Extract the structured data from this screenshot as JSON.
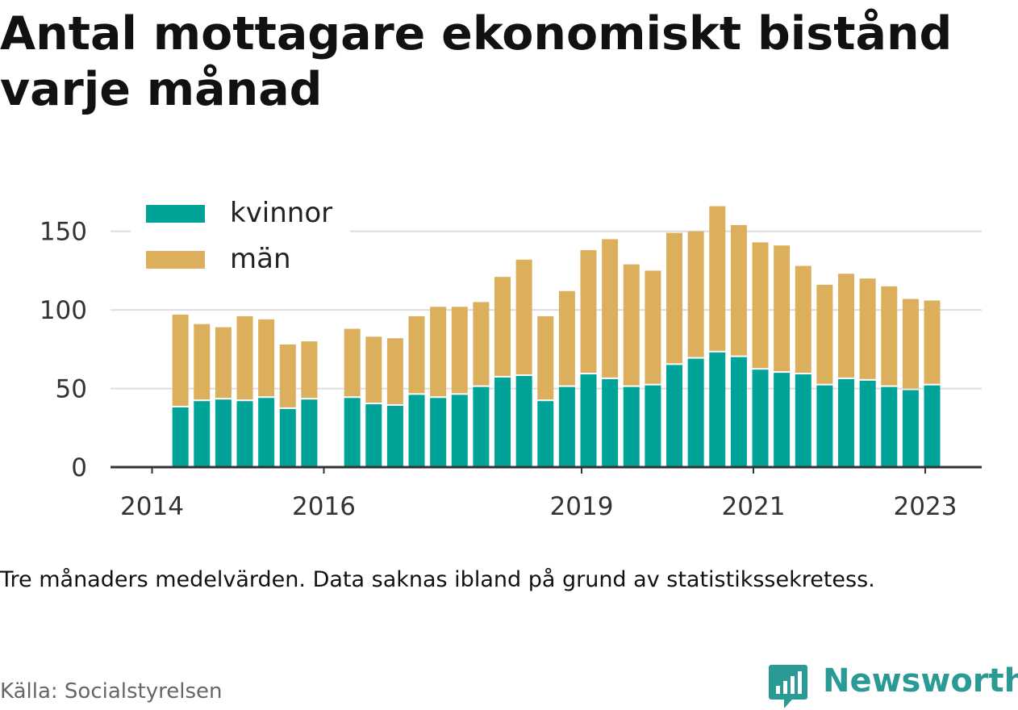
{
  "title": "Antal mottagare ekonomiskt bistånd varje månad",
  "note": "Tre månaders medelvärden. Data saknas ibland på grund av statistikssekretess.",
  "source": "Källa: Socialstyrelsen",
  "brand": {
    "name": "Newsworthy",
    "icon": "bar-chart-speech-bubble-icon",
    "color": "#2a9a94"
  },
  "colors": {
    "kvinnor": "#00a398",
    "man": "#dcaf5c",
    "grid": "#dddddd",
    "axis": "#333333"
  },
  "chart_data": {
    "type": "bar",
    "stacked": true,
    "x_tick_labels": [
      "2014",
      "2016",
      "2019",
      "2021",
      "2023"
    ],
    "x_tick_years": [
      2014,
      2016,
      2019,
      2021,
      2023
    ],
    "y_ticks": [
      0,
      50,
      100,
      150
    ],
    "ylim": [
      0,
      175
    ],
    "grid": true,
    "legend_position": "top-left",
    "x": [
      2014.33,
      2014.58,
      2014.83,
      2015.08,
      2015.33,
      2015.58,
      2015.83,
      2016.33,
      2016.58,
      2016.83,
      2017.08,
      2017.33,
      2017.58,
      2017.83,
      2018.08,
      2018.33,
      2018.58,
      2018.83,
      2019.08,
      2019.33,
      2019.58,
      2019.83,
      2020.08,
      2020.33,
      2020.58,
      2020.83,
      2021.08,
      2021.33,
      2021.58,
      2021.83,
      2022.08,
      2022.33,
      2022.58,
      2022.83,
      2023.08
    ],
    "series": [
      {
        "name": "kvinnor",
        "values": [
          38,
          42,
          43,
          42,
          44,
          37,
          43,
          44,
          40,
          39,
          46,
          44,
          46,
          51,
          57,
          58,
          42,
          51,
          59,
          56,
          51,
          52,
          65,
          69,
          73,
          70,
          62,
          60,
          59,
          52,
          56,
          55,
          51,
          49,
          52
        ]
      },
      {
        "name": "män",
        "values": [
          59,
          49,
          46,
          54,
          50,
          41,
          37,
          44,
          43,
          43,
          50,
          58,
          56,
          54,
          64,
          74,
          54,
          61,
          79,
          89,
          78,
          73,
          84,
          81,
          93,
          84,
          81,
          81,
          69,
          64,
          67,
          65,
          64,
          58,
          54
        ]
      }
    ]
  }
}
